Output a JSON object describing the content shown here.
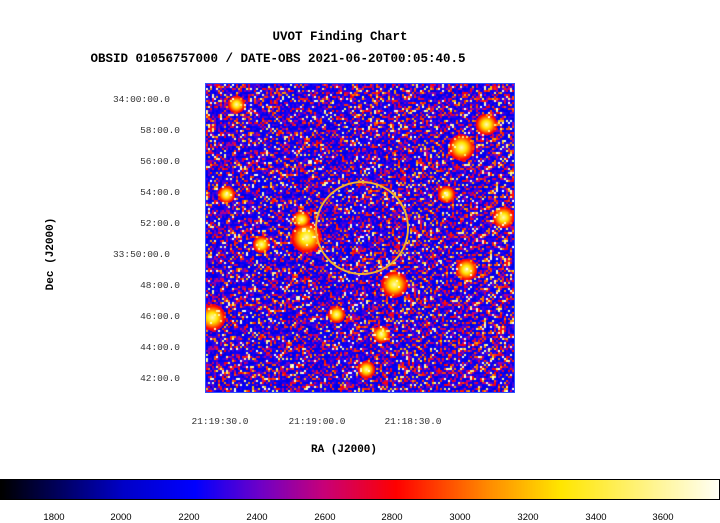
{
  "header": {
    "title": "UVOT Finding Chart",
    "subtitle": "OBSID 01056757000 / DATE-OBS 2021-06-20T00:05:40.5"
  },
  "axes": {
    "ylabel": "Dec (J2000)",
    "xlabel": "RA (J2000)",
    "dec_ticks": [
      "34:00:00.0",
      "58:00.0",
      "56:00.0",
      "54:00.0",
      "52:00.0",
      "33:50:00.0",
      "48:00.0",
      "46:00.0",
      "44:00.0",
      "42:00.0"
    ],
    "ra_ticks": [
      "21:19:30.0",
      "21:19:00.0",
      "21:18:30.0"
    ]
  },
  "colorbar": {
    "ticks": [
      "1800",
      "2000",
      "2200",
      "2400",
      "2600",
      "2800",
      "3000",
      "3200",
      "3400",
      "3600"
    ],
    "range": [
      1700,
      3720
    ]
  },
  "marker": {
    "shape": "circle",
    "color": "#f0b030"
  },
  "colors": {
    "frame": "#3050ff",
    "background_noise": "#2a2ad8"
  }
}
